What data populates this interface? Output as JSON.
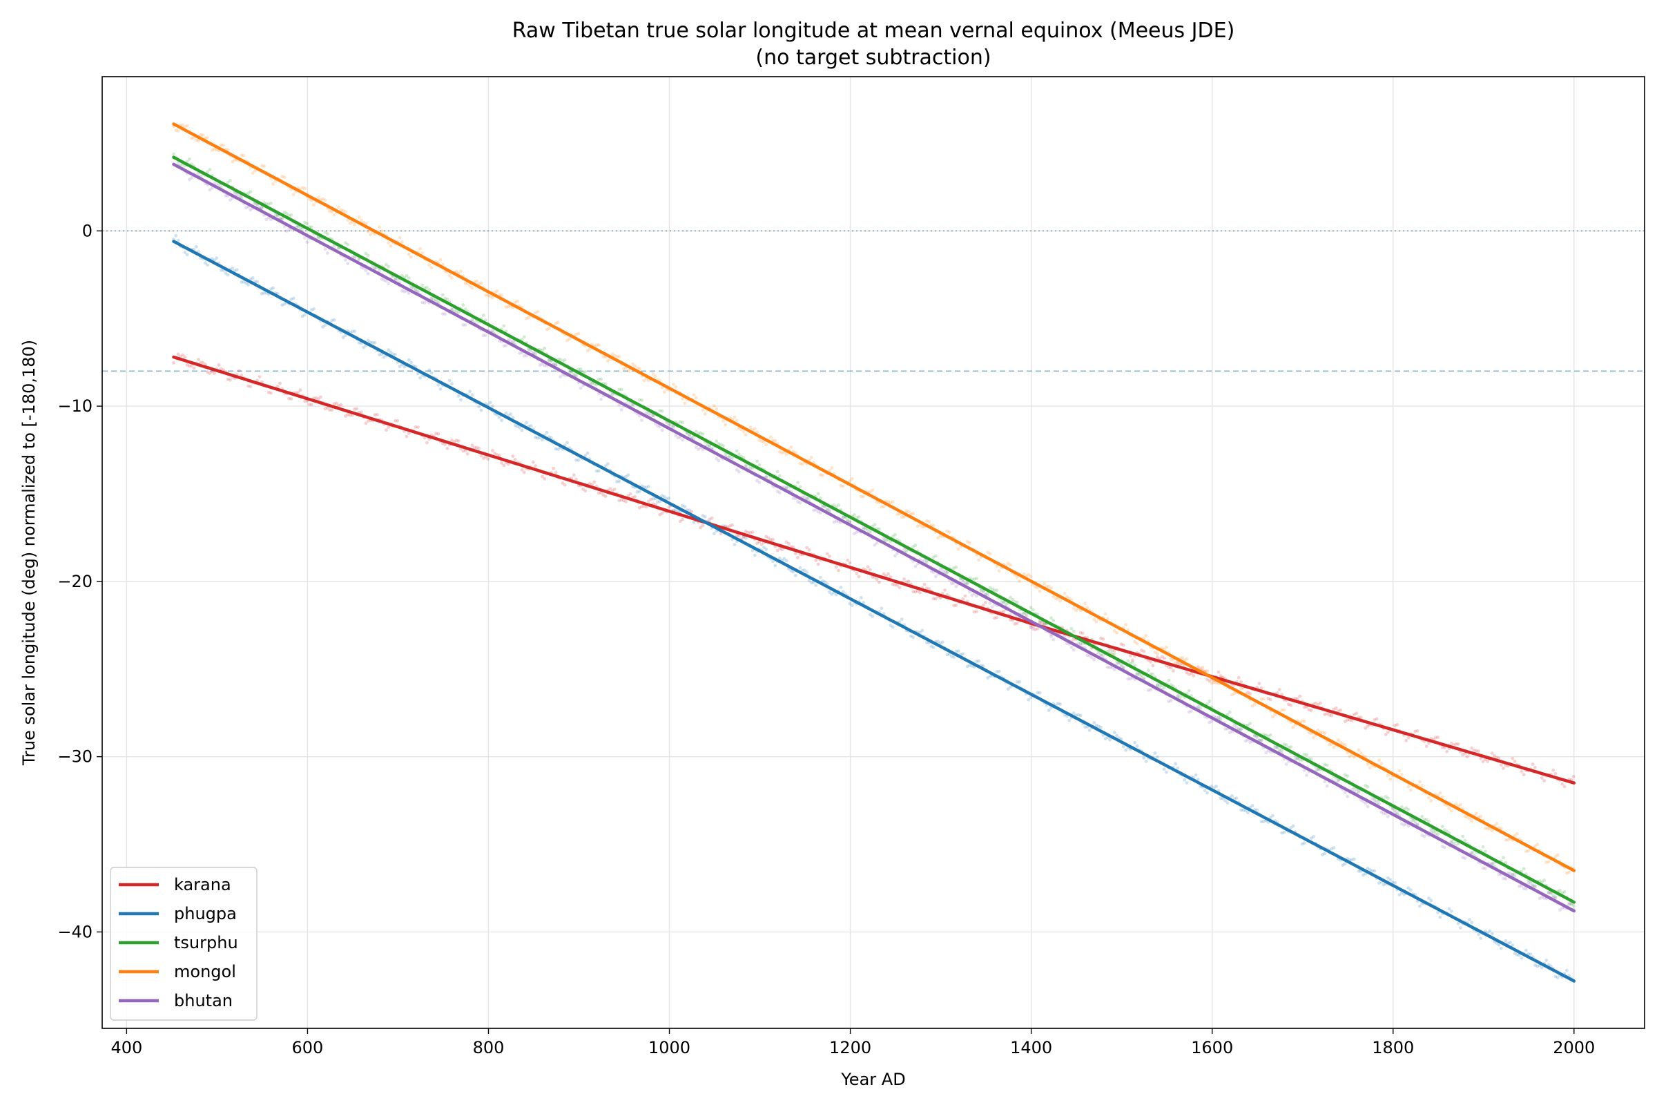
{
  "chart_data": {
    "type": "line",
    "title": "Raw Tibetan true solar longitude at mean vernal equinox (Meeus JDE)",
    "subtitle": "(no target subtraction)",
    "xlabel": "Year AD",
    "ylabel": "True solar longitude (deg) normalized to [-180,180)",
    "xlim": [
      373,
      2078
    ],
    "ylim": [
      -45.5,
      8.8
    ],
    "xticks": [
      400,
      600,
      800,
      1000,
      1200,
      1400,
      1600,
      1800,
      2000
    ],
    "yticks": [
      0,
      -10,
      -20,
      -30,
      -40
    ],
    "ytick_labels": [
      "0",
      "−10",
      "−20",
      "−30",
      "−40"
    ],
    "grid": true,
    "legend_position": "lower-left",
    "reference_lines": [
      {
        "y": 0,
        "style": "dotted",
        "color": "#7f9aa8"
      },
      {
        "y": -8,
        "style": "dashed",
        "color": "#8db3cc"
      }
    ],
    "series": [
      {
        "name": "karana",
        "color": "#d62728",
        "x": [
          452,
          1000,
          1400,
          2000
        ],
        "values": [
          -7.2,
          -16.0,
          -22.4,
          -31.5
        ]
      },
      {
        "name": "phugpa",
        "color": "#1f77b4",
        "x": [
          452,
          2000
        ],
        "values": [
          -0.6,
          -42.8
        ]
      },
      {
        "name": "tsurphu",
        "color": "#2ca02c",
        "x": [
          452,
          2000
        ],
        "values": [
          4.2,
          -38.3
        ]
      },
      {
        "name": "mongol",
        "color": "#ff7f0e",
        "x": [
          452,
          2000
        ],
        "values": [
          6.1,
          -36.5
        ]
      },
      {
        "name": "bhutan",
        "color": "#9467bd",
        "x": [
          452,
          2000
        ],
        "values": [
          3.8,
          -38.8
        ]
      }
    ]
  }
}
